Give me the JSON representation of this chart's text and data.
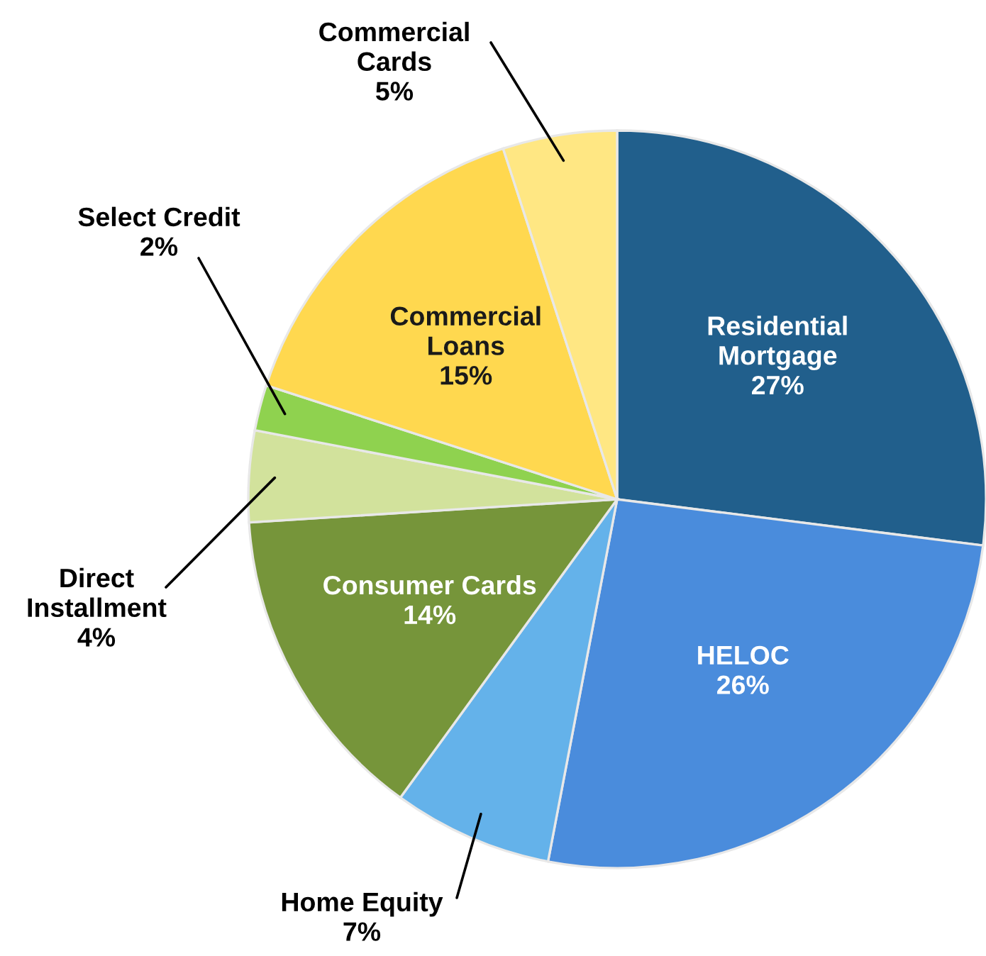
{
  "chart_data": {
    "type": "pie",
    "categories": [
      "Residential Mortgage",
      "HELOC",
      "Home Equity",
      "Consumer Cards",
      "Direct Installment",
      "Select Credit",
      "Commercial Loans",
      "Commercial Cards"
    ],
    "values": [
      27,
      26,
      7,
      14,
      4,
      2,
      15,
      5
    ],
    "value_labels": [
      "27%",
      "26%",
      "7%",
      "14%",
      "4%",
      "2%",
      "15%",
      "5%"
    ],
    "colors": [
      "#215f8c",
      "#4a8cdc",
      "#64b2ea",
      "#76953a",
      "#d2e29c",
      "#8fd24f",
      "#ffd84f",
      "#ffe783"
    ],
    "legend": false
  }
}
